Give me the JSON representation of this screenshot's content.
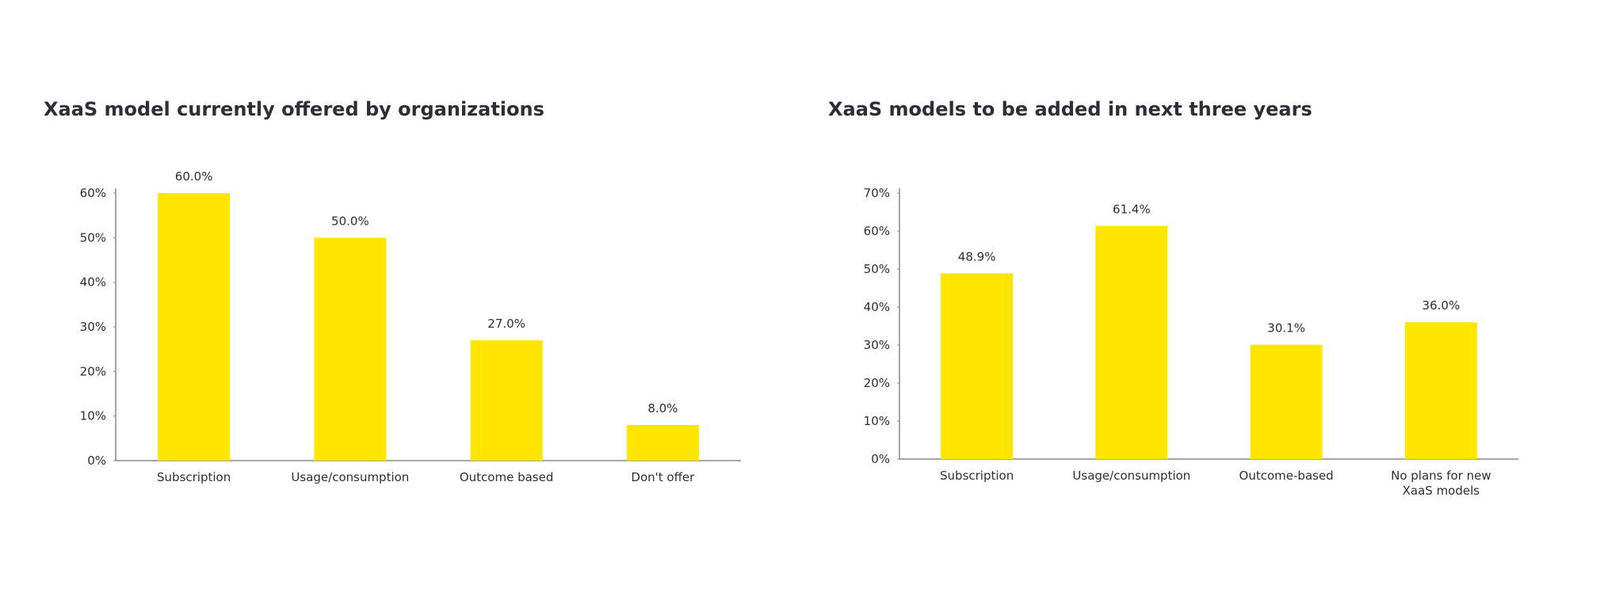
{
  "chart_data": [
    {
      "type": "bar",
      "title": "XaaS model currently offered by organizations",
      "categories": [
        "Subscription",
        "Usage/consumption",
        "Outcome based",
        "Don't offer"
      ],
      "values": [
        60.0,
        50.0,
        27.0,
        8.0
      ],
      "value_labels": [
        "60.0%",
        "50.0%",
        "27.0%",
        "8.0%"
      ],
      "color": "#FFE600",
      "ylim": [
        0,
        60
      ],
      "yticks": [
        {
          "value": 0,
          "label": "0%"
        },
        {
          "value": 10,
          "label": "10%"
        },
        {
          "value": 20,
          "label": "20%"
        },
        {
          "value": 30,
          "label": "30%"
        },
        {
          "value": 40,
          "label": "40%"
        },
        {
          "value": 50,
          "label": "50%"
        },
        {
          "value": 60,
          "label": "60%"
        }
      ],
      "grid": false
    },
    {
      "type": "bar",
      "title": "XaaS models to be added in next three years",
      "categories": [
        "Subscription",
        "Usage/consumption",
        "Outcome-based",
        "No plans for new XaaS models"
      ],
      "values": [
        48.9,
        61.4,
        30.1,
        36.0
      ],
      "value_labels": [
        "48.9%",
        "61.4%",
        "30.1%",
        "36.0%"
      ],
      "color": "#FFE600",
      "ylim": [
        0,
        70
      ],
      "yticks": [
        {
          "value": 0,
          "label": "0%"
        },
        {
          "value": 10,
          "label": "10%"
        },
        {
          "value": 20,
          "label": "20%"
        },
        {
          "value": 30,
          "label": "30%"
        },
        {
          "value": 40,
          "label": "40%"
        },
        {
          "value": 50,
          "label": "50%"
        },
        {
          "value": 60,
          "label": "60%"
        },
        {
          "value": 70,
          "label": "70%"
        }
      ],
      "grid": false
    }
  ]
}
